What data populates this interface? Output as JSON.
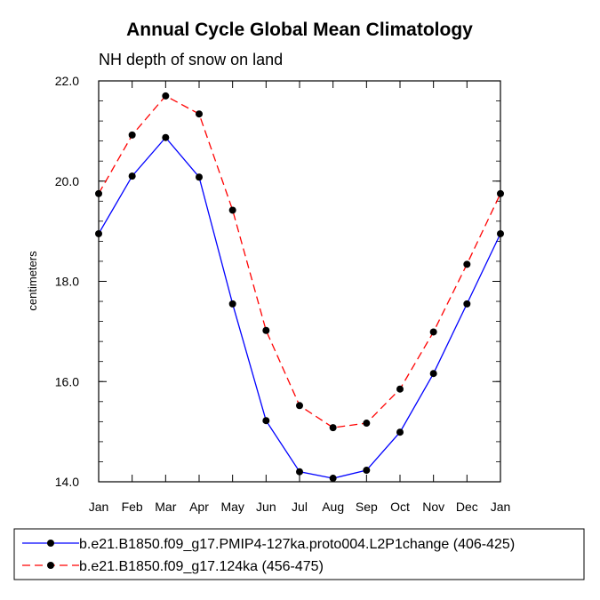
{
  "chart_data": {
    "type": "line",
    "title": "Annual Cycle Global Mean Climatology",
    "subtitle": "NH depth of snow on land",
    "xlabel": "",
    "ylabel": "centimeters",
    "categories": [
      "Jan",
      "Feb",
      "Mar",
      "Apr",
      "May",
      "Jun",
      "Jul",
      "Aug",
      "Sep",
      "Oct",
      "Nov",
      "Dec",
      "Jan"
    ],
    "ylim": [
      14.0,
      22.0
    ],
    "yticks": [
      "14.0",
      "16.0",
      "18.0",
      "20.0",
      "22.0"
    ],
    "series": [
      {
        "name": "b.e21.B1850.f09_g17.PMIP4-127ka.proto004.L2P1change (406-425)",
        "color": "#0000ff",
        "dash": "solid",
        "values": [
          18.95,
          20.1,
          20.87,
          20.08,
          17.55,
          15.22,
          14.2,
          14.07,
          14.23,
          14.99,
          16.16,
          17.55,
          18.95
        ]
      },
      {
        "name": "b.e21.B1850.f09_g17.124ka (456-475)",
        "color": "#ff0000",
        "dash": "dashed",
        "values": [
          19.75,
          20.92,
          21.7,
          21.34,
          19.42,
          17.02,
          15.52,
          15.08,
          15.17,
          15.85,
          16.99,
          18.34,
          19.75
        ]
      }
    ],
    "legend_position": "bottom"
  }
}
